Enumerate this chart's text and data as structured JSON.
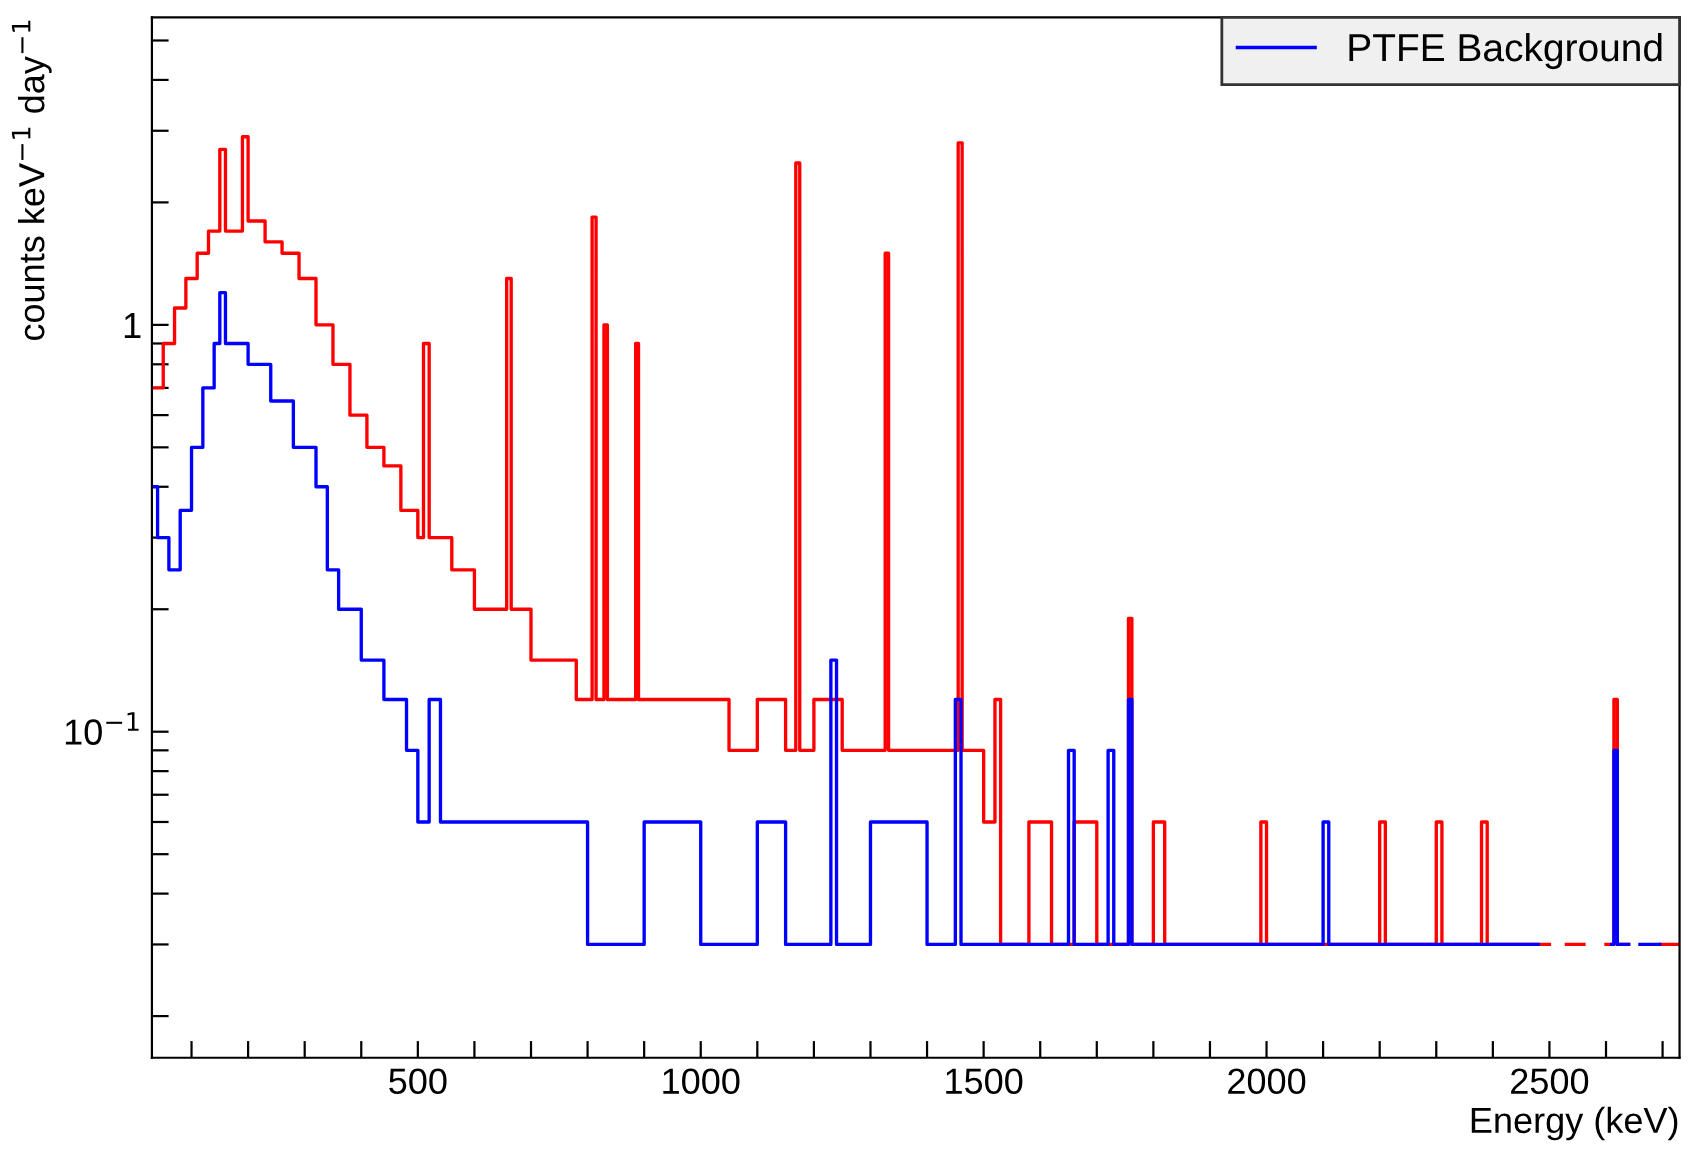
{
  "chart_data": {
    "type": "step",
    "xlabel": "Energy (keV)",
    "ylabel": "counts keV$^{−1}$ day$^{−1}$",
    "log": "y",
    "legend": "top right",
    "grid": false,
    "xlim": [
      30,
      2730
    ],
    "ylim": [
      0.0158,
      5.7
    ],
    "xticks": [
      {
        "value": 100,
        "label": null
      },
      {
        "value": 200,
        "label": null
      },
      {
        "value": 300,
        "label": null
      },
      {
        "value": 400,
        "label": null
      },
      500,
      {
        "value": 600,
        "label": null
      },
      {
        "value": 700,
        "label": null
      },
      {
        "value": 800,
        "label": null
      },
      {
        "value": 900,
        "label": null
      },
      1000,
      {
        "value": 1100,
        "label": null
      },
      {
        "value": 1200,
        "label": null
      },
      {
        "value": 1300,
        "label": null
      },
      {
        "value": 1400,
        "label": null
      },
      1500,
      {
        "value": 1600,
        "label": null
      },
      {
        "value": 1700,
        "label": null
      },
      {
        "value": 1800,
        "label": null
      },
      {
        "value": 1900,
        "label": null
      },
      2000,
      {
        "value": 2100,
        "label": null
      },
      {
        "value": 2200,
        "label": null
      },
      {
        "value": 2300,
        "label": null
      },
      {
        "value": 2400,
        "label": null
      },
      2500,
      {
        "value": 2600,
        "label": null
      },
      {
        "value": 2700,
        "label": null
      }
    ],
    "yticks": [
      {
        "value": 0.02,
        "label": null
      },
      {
        "value": 0.03,
        "label": null
      },
      {
        "value": 0.04,
        "label": null
      },
      {
        "value": 0.05,
        "label": null
      },
      {
        "value": 0.06,
        "label": null
      },
      {
        "value": 0.07,
        "label": null
      },
      {
        "value": 0.08,
        "label": null
      },
      {
        "value": 0.09,
        "label": null
      },
      {
        "value": 0.1,
        "label": "10$^{−1}$"
      },
      {
        "value": 0.2,
        "label": null
      },
      {
        "value": 0.3,
        "label": null
      },
      {
        "value": 0.4,
        "label": null
      },
      {
        "value": 0.5,
        "label": null
      },
      {
        "value": 0.6,
        "label": null
      },
      {
        "value": 0.7,
        "label": null
      },
      {
        "value": 0.8,
        "label": null
      },
      {
        "value": 0.9,
        "label": null
      },
      1,
      {
        "value": 2,
        "label": null
      },
      {
        "value": 3,
        "label": null
      },
      {
        "value": 4,
        "label": null
      },
      {
        "value": 5,
        "label": null
      }
    ],
    "series": [
      {
        "color": "#ff0000",
        "x": [
          30,
          50,
          70,
          90,
          110,
          130,
          150,
          160,
          190,
          200,
          230,
          260,
          290,
          320,
          350,
          380,
          410,
          440,
          470,
          500,
          510,
          520,
          560,
          600,
          640,
          657,
          665,
          700,
          740,
          780,
          808,
          815,
          829,
          835,
          885,
          890,
          940,
          1000,
          1050,
          1100,
          1150,
          1168,
          1175,
          1200,
          1250,
          1300,
          1326,
          1332,
          1380,
          1420,
          1455,
          1462,
          1500,
          1520,
          1530,
          1580,
          1620,
          1660,
          1700,
          1756,
          1762,
          1800,
          1820,
          1900,
          1990,
          2000,
          2100,
          2200,
          2210,
          2300,
          2310,
          2380,
          2390,
          2480,
          2500,
          2530,
          2560,
          2561,
          2600,
          2614,
          2620,
          2640,
          2695,
          2728
        ],
        "values": [
          0.7,
          0.9,
          1.1,
          1.3,
          1.5,
          1.7,
          2.7,
          1.7,
          2.9,
          1.8,
          1.6,
          1.5,
          1.3,
          1.0,
          0.8,
          0.6,
          0.5,
          0.45,
          0.35,
          0.3,
          0.9,
          0.3,
          0.25,
          0.2,
          0.2,
          1.3,
          0.2,
          0.15,
          0.15,
          0.12,
          1.84,
          0.12,
          1.0,
          0.12,
          0.9,
          0.12,
          0.12,
          0.12,
          0.09,
          0.12,
          0.09,
          2.5,
          0.09,
          0.12,
          0.09,
          0.09,
          1.5,
          0.09,
          0.09,
          0.09,
          2.8,
          0.09,
          0.06,
          0.12,
          0.03,
          0.06,
          0.03,
          0.06,
          0.03,
          0.19,
          0.03,
          0.06,
          0.03,
          0.03,
          0.06,
          0.03,
          0.03,
          0.06,
          0.03,
          0.06,
          0.03,
          0.06,
          0.03,
          0.03,
          null,
          0.03,
          0.03,
          null,
          0.03,
          0.12,
          0.03,
          null,
          0.03,
          0.03
        ]
      },
      {
        "name": "PTFE Background",
        "color": "#0000ff",
        "x": [
          30,
          40,
          60,
          80,
          100,
          120,
          140,
          150,
          160,
          200,
          240,
          280,
          320,
          340,
          360,
          400,
          440,
          480,
          500,
          520,
          540,
          600,
          700,
          800,
          900,
          1000,
          1100,
          1150,
          1230,
          1240,
          1300,
          1400,
          1450,
          1460,
          1520,
          1600,
          1650,
          1660,
          1720,
          1730,
          1756,
          1762,
          1800,
          2000,
          2100,
          2110,
          2200,
          2300,
          2460,
          2480,
          2610,
          2614,
          2620,
          2640,
          2660,
          2695
        ],
        "values": [
          0.4,
          0.3,
          0.25,
          0.35,
          0.5,
          0.7,
          0.9,
          1.2,
          0.9,
          0.8,
          0.65,
          0.5,
          0.4,
          0.25,
          0.2,
          0.15,
          0.12,
          0.09,
          0.06,
          0.12,
          0.06,
          0.06,
          0.06,
          0.03,
          0.06,
          0.03,
          0.06,
          0.03,
          0.15,
          0.03,
          0.06,
          0.03,
          0.12,
          0.03,
          0.03,
          0.03,
          0.09,
          0.03,
          0.09,
          0.03,
          0.12,
          0.03,
          0.03,
          0.03,
          0.06,
          0.03,
          0.03,
          0.03,
          0.03,
          null,
          0.03,
          0.09,
          0.03,
          null,
          0.03,
          0.03
        ]
      }
    ]
  }
}
